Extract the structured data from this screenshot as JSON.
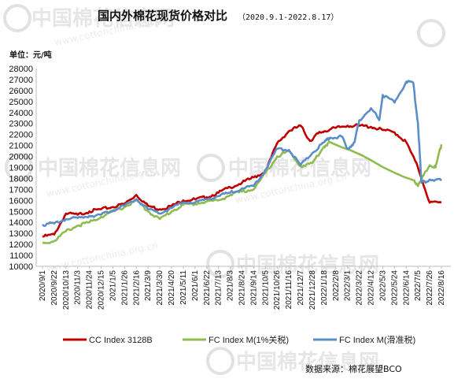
{
  "watermark": {
    "brand": "中国棉花信息网",
    "url": "www.cottonchina.org.cn"
  },
  "header": {
    "title": "国内外棉花现货价格对比",
    "date_range": "（2020.9.1-2022.8.17）",
    "unit": "单位：元/吨"
  },
  "source_note": "数据来源：棉花展望BCO",
  "chart_data": {
    "type": "line",
    "title": "国内外棉花现货价格对比",
    "ylabel": "单位：元/吨",
    "ylim": [
      10000,
      28000
    ],
    "yticks": [
      10000,
      11000,
      12000,
      13000,
      14000,
      15000,
      16000,
      17000,
      18000,
      19000,
      20000,
      21000,
      22000,
      23000,
      24000,
      25000,
      26000,
      27000,
      28000
    ],
    "x_categories": [
      "2020/9/1",
      "2020/9/22",
      "2020/10/13",
      "2020/11/3",
      "2020/11/24",
      "2020/12/15",
      "2021/1/5",
      "2021/1/26",
      "2021/2/16",
      "2021/3/9",
      "2021/3/30",
      "2021/4/20",
      "2021/5/11",
      "2021/6/1",
      "2021/6/22",
      "2021/7/13",
      "2021/8/3",
      "2021/8/24",
      "2021/9/14",
      "2021/10/5",
      "2021/10/26",
      "2021/11/16",
      "2021/12/7",
      "2021/12/28",
      "2022/1/18",
      "2022/2/8",
      "2022/3/1",
      "2022/3/22",
      "2022/4/12",
      "2022/5/3",
      "2022/5/24",
      "2022/6/14",
      "2022/7/5",
      "2022/7/26",
      "2022/8/16"
    ],
    "grid": false,
    "legend_position": "bottom",
    "series": [
      {
        "name": "CC Index 3128B",
        "color": "#c00000",
        "points": [
          [
            0,
            12700
          ],
          [
            1,
            12900
          ],
          [
            2,
            14800
          ],
          [
            3,
            14700
          ],
          [
            4,
            15000
          ],
          [
            5,
            15200
          ],
          [
            6,
            15400
          ],
          [
            7,
            15700
          ],
          [
            8,
            16500
          ],
          [
            9,
            15500
          ],
          [
            10,
            15200
          ],
          [
            11,
            15500
          ],
          [
            12,
            16000
          ],
          [
            13,
            16100
          ],
          [
            14,
            16300
          ],
          [
            15,
            16700
          ],
          [
            16,
            17200
          ],
          [
            17,
            17600
          ],
          [
            18,
            18100
          ],
          [
            19,
            18600
          ],
          [
            20,
            21200
          ],
          [
            21,
            22300
          ],
          [
            22,
            22800
          ],
          [
            22.8,
            21400
          ],
          [
            23.5,
            22100
          ],
          [
            24,
            22300
          ],
          [
            25,
            22600
          ],
          [
            26,
            22800
          ],
          [
            27,
            22800
          ],
          [
            28,
            22700
          ],
          [
            29,
            22400
          ],
          [
            30,
            22200
          ],
          [
            31,
            21300
          ],
          [
            32,
            19000
          ],
          [
            33,
            15800
          ],
          [
            34,
            15800
          ]
        ]
      },
      {
        "name": "FC Index M(1%关税)",
        "color": "#8fbc4f",
        "points": [
          [
            0,
            12100
          ],
          [
            1,
            12300
          ],
          [
            2,
            13200
          ],
          [
            3,
            13700
          ],
          [
            4,
            14000
          ],
          [
            5,
            14500
          ],
          [
            6,
            15000
          ],
          [
            7,
            15400
          ],
          [
            8,
            16000
          ],
          [
            9,
            15000
          ],
          [
            10,
            14300
          ],
          [
            11,
            15000
          ],
          [
            12,
            15600
          ],
          [
            13,
            15700
          ],
          [
            14,
            15900
          ],
          [
            15,
            16000
          ],
          [
            16,
            16500
          ],
          [
            17,
            16800
          ],
          [
            18,
            17000
          ],
          [
            19,
            18500
          ],
          [
            20,
            20000
          ],
          [
            21,
            20500
          ],
          [
            22,
            19100
          ],
          [
            23,
            19400
          ],
          [
            24,
            20900
          ],
          [
            24.5,
            21300
          ],
          [
            31.7,
            17800
          ],
          [
            32,
            17300
          ],
          [
            33,
            19200
          ],
          [
            33.5,
            19000
          ],
          [
            34,
            21100
          ]
        ]
      },
      {
        "name": "FC Index M(滑准税)",
        "color": "#5b8ec9",
        "points": [
          [
            0,
            13800
          ],
          [
            1,
            13900
          ],
          [
            2,
            14300
          ],
          [
            3,
            14400
          ],
          [
            4,
            14600
          ],
          [
            5,
            14700
          ],
          [
            6,
            15100
          ],
          [
            7,
            15500
          ],
          [
            8,
            16100
          ],
          [
            9,
            15200
          ],
          [
            10,
            14800
          ],
          [
            11,
            15300
          ],
          [
            12,
            15800
          ],
          [
            13,
            15800
          ],
          [
            14,
            16100
          ],
          [
            15,
            16400
          ],
          [
            16,
            16700
          ],
          [
            17,
            17100
          ],
          [
            18,
            17300
          ],
          [
            19,
            18800
          ],
          [
            20,
            20700
          ],
          [
            21,
            20600
          ],
          [
            22,
            19200
          ],
          [
            23,
            20300
          ],
          [
            24,
            21300
          ],
          [
            24.5,
            21700
          ],
          [
            25.5,
            21800
          ],
          [
            26,
            20700
          ],
          [
            26.6,
            21300
          ],
          [
            27,
            23300
          ],
          [
            28,
            24400
          ],
          [
            28.7,
            23300
          ],
          [
            29,
            25600
          ],
          [
            30,
            24900
          ],
          [
            31,
            26800
          ],
          [
            31.6,
            26700
          ],
          [
            32,
            23000
          ],
          [
            32.3,
            17600
          ],
          [
            33,
            17900
          ],
          [
            34,
            17800
          ]
        ]
      }
    ]
  }
}
